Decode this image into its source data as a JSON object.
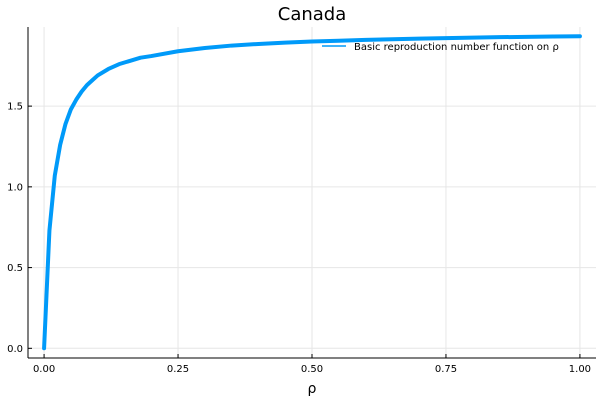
{
  "chart_data": {
    "type": "line",
    "title": "Canada",
    "xlabel": "ρ",
    "ylabel": "",
    "xlim": [
      -0.03,
      1.03
    ],
    "ylim": [
      -0.06,
      1.99
    ],
    "x_ticks": [
      0.0,
      0.25,
      0.5,
      0.75,
      1.0
    ],
    "x_tick_labels": [
      "0.00",
      "0.25",
      "0.50",
      "0.75",
      "1.00"
    ],
    "y_ticks": [
      0.0,
      0.5,
      1.0,
      1.5
    ],
    "y_tick_labels": [
      "0.0",
      "0.5",
      "1.0",
      "1.5"
    ],
    "grid": true,
    "legend_position": "top-right",
    "series": [
      {
        "name": "Basic reproduction number function on ρ",
        "color": "#009af9",
        "x": [
          0.0,
          0.01,
          0.02,
          0.03,
          0.04,
          0.05,
          0.06,
          0.07,
          0.08,
          0.09,
          0.1,
          0.12,
          0.14,
          0.16,
          0.18,
          0.2,
          0.25,
          0.3,
          0.35,
          0.4,
          0.45,
          0.5,
          0.55,
          0.6,
          0.65,
          0.7,
          0.75,
          0.8,
          0.85,
          0.9,
          0.95,
          1.0
        ],
        "y": [
          0.0,
          0.73,
          1.07,
          1.26,
          1.39,
          1.48,
          1.54,
          1.59,
          1.63,
          1.66,
          1.69,
          1.73,
          1.76,
          1.78,
          1.8,
          1.81,
          1.84,
          1.86,
          1.875,
          1.885,
          1.893,
          1.9,
          1.905,
          1.91,
          1.914,
          1.918,
          1.921,
          1.924,
          1.927,
          1.929,
          1.931,
          1.933
        ]
      }
    ]
  }
}
